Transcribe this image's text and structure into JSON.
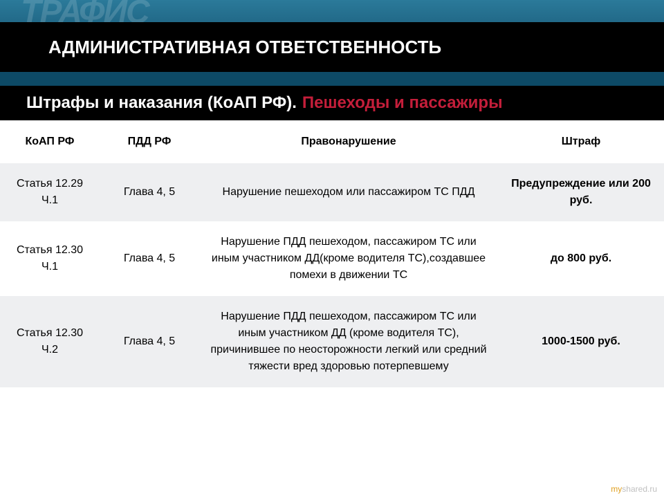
{
  "bg_text": "ТРАФИС",
  "header": {
    "title": "АДМИНИСТРАТИВНАЯ ОТВЕТСТВЕННОСТЬ"
  },
  "subtitle": {
    "white": "Штрафы и наказания (КоАП РФ).",
    "red": "Пешеходы и пассажиры"
  },
  "table": {
    "columns": [
      "КоАП РФ",
      "ПДД РФ",
      "Правонарушение",
      "Штраф"
    ],
    "rows": [
      {
        "koap": "Статья 12.29 Ч.1",
        "pdd": "Глава 4, 5",
        "offense": "Нарушение пешеходом или пассажиром ТС ПДД",
        "fine": "Предупреждение или 200 руб."
      },
      {
        "koap": "Статья 12.30 Ч.1",
        "pdd": "Глава 4, 5",
        "offense": "Нарушение ПДД пешеходом, пассажиром ТС или иным участником ДД(кроме водителя ТС),создавшее помехи в движении ТС",
        "fine": "до 800 руб."
      },
      {
        "koap": "Статья 12.30 Ч.2",
        "pdd": "Глава 4, 5",
        "offense": "Нарушение ПДД пешеходом, пассажиром ТС или иным участником ДД (кроме водителя ТС), причинившее по неосторожности легкий или средний тяжести вред здоровью потерпевшему",
        "fine": "1000-1500 руб."
      }
    ]
  },
  "watermark": {
    "my": "my",
    "shared": "shared.ru"
  },
  "styling": {
    "header_bg": "#000000",
    "header_text_color": "#ffffff",
    "subtitle_red_color": "#c41e3a",
    "row_odd_bg": "#eeeff1",
    "row_even_bg": "#ffffff",
    "body_bg_gradient": [
      "#2b7a9a",
      "#1a5c7a",
      "#0d4a66"
    ],
    "font_family": "Arial",
    "header_fontsize": 26,
    "subtitle_fontsize": 24,
    "cell_fontsize": 16
  }
}
